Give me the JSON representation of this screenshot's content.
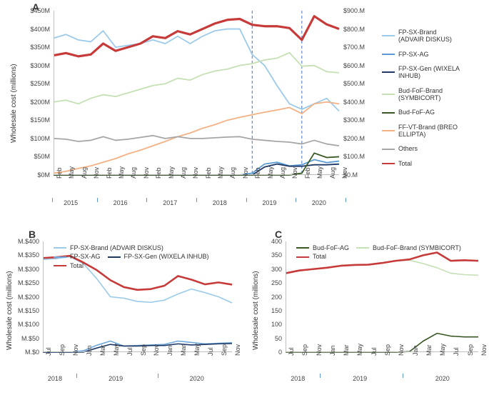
{
  "A": {
    "type": "line",
    "label": "A",
    "y_title": "Wholesale cost (millions)",
    "secondary_y_title": "",
    "x_months": [
      "Feb",
      "May",
      "Aug",
      "Nov",
      "Feb",
      "May",
      "Aug",
      "Nov",
      "Feb",
      "May",
      "Aug",
      "Nov",
      "Feb",
      "May",
      "Aug",
      "Nov",
      "Feb",
      "May",
      "Aug",
      "Nov",
      "Feb",
      "May",
      "Aug",
      "Nov"
    ],
    "x_years": [
      2015,
      2016,
      2017,
      2018,
      2019,
      2020
    ],
    "y_ticks": [
      "$0M",
      "$50M",
      "$100M",
      "$150M",
      "$200M",
      "$250M",
      "$300M",
      "$350M",
      "$400M",
      "$450M"
    ],
    "y_lim": [
      0,
      450
    ],
    "y2_ticks": [
      "$0.M",
      "$100.M",
      "$200.M",
      "$300.M",
      "$400.M",
      "$500.M",
      "$600.M",
      "$700.M",
      "$800.M",
      "$900.M"
    ],
    "y2_lim": [
      0,
      900
    ],
    "vlines_x": [
      16,
      20
    ],
    "vline_color": "#4472c4",
    "vline_dash": "4,3",
    "series_order": [
      "FP-SX-Brand",
      "FP-SX-AG",
      "FP-SX-Gen",
      "Bud-FoF-Brand",
      "Bud-FoF-AG",
      "FF-VT-Brand",
      "Others",
      "Total"
    ],
    "series": {
      "FP-SX-Brand": {
        "color": "#9ccbe9",
        "width": 1.8,
        "label": "FP-SX-Brand (ADVAIR DISKUS)",
        "values": [
          375,
          385,
          370,
          365,
          395,
          350,
          355,
          360,
          370,
          360,
          380,
          360,
          380,
          395,
          400,
          400,
          330,
          300,
          245,
          195,
          180,
          195,
          210,
          175
        ]
      },
      "FP-SX-AG": {
        "color": "#5b9bd5",
        "width": 1.8,
        "label": "FP-SX-AG",
        "values": [
          0,
          0,
          0,
          0,
          0,
          0,
          0,
          0,
          0,
          0,
          0,
          0,
          0,
          0,
          0,
          0,
          5,
          30,
          35,
          25,
          28,
          42,
          34,
          38
        ]
      },
      "FP-SX-Gen": {
        "color": "#1f3864",
        "width": 1.8,
        "label": "FP-SX-Gen (WIXELA INHUB)",
        "values": [
          0,
          0,
          0,
          0,
          0,
          0,
          0,
          0,
          0,
          0,
          0,
          0,
          0,
          0,
          0,
          0,
          0,
          22,
          30,
          24,
          24,
          28,
          28,
          30
        ]
      },
      "Bud-FoF-Brand": {
        "color": "#c5e0b4",
        "width": 1.8,
        "label": "Bud-FoF-Brand (SYMBICORT)",
        "values": [
          200,
          205,
          195,
          210,
          220,
          215,
          225,
          235,
          245,
          250,
          265,
          260,
          275,
          285,
          290,
          300,
          305,
          315,
          320,
          335,
          298,
          300,
          283,
          280
        ]
      },
      "Bud-FoF-AG": {
        "color": "#385723",
        "width": 1.8,
        "label": "Bud-FoF-AG",
        "values": [
          0,
          0,
          0,
          0,
          0,
          0,
          0,
          0,
          0,
          0,
          0,
          0,
          0,
          0,
          0,
          0,
          0,
          0,
          0,
          0,
          5,
          60,
          48,
          50
        ]
      },
      "FF-VT-Brand": {
        "color": "#f4b183",
        "width": 1.8,
        "label": "FF-VT-Brand (BREO ELLIPTA)",
        "values": [
          5,
          10,
          18,
          25,
          35,
          45,
          58,
          68,
          80,
          92,
          105,
          115,
          128,
          138,
          150,
          158,
          165,
          172,
          178,
          185,
          168,
          195,
          200,
          195
        ]
      },
      "Others": {
        "color": "#a6a6a6",
        "width": 1.8,
        "label": "Others",
        "values": [
          100,
          98,
          92,
          95,
          105,
          95,
          98,
          103,
          108,
          100,
          105,
          100,
          100,
          102,
          104,
          105,
          98,
          95,
          92,
          90,
          85,
          95,
          85,
          80
        ]
      },
      "Total": {
        "color": "#c73a3a",
        "width": 3.2,
        "label": "Total",
        "axis": "y2",
        "values": [
          655,
          668,
          650,
          660,
          720,
          680,
          700,
          720,
          760,
          750,
          788,
          770,
          800,
          830,
          850,
          855,
          823,
          815,
          815,
          805,
          740,
          870,
          825,
          800
        ]
      }
    },
    "plot_bg": "#ffffff",
    "axis_color": "#bfbfbf",
    "tick_font_size": 9
  },
  "B": {
    "type": "line",
    "label": "B",
    "y_title": "Wholesale cost (millions)",
    "x_months": [
      "Jul",
      "Sep",
      "Nov",
      "Jan",
      "Mar",
      "May",
      "Jul",
      "Sep",
      "Nov",
      "Jan",
      "Mar",
      "May",
      "Jul",
      "Sep",
      "Nov"
    ],
    "x_years": [
      2018,
      2019,
      2020
    ],
    "year_breaks": [
      3,
      9
    ],
    "y_ticks": [
      "$0.M",
      "$50.M",
      "$100.M",
      "$150.M",
      "$200.M",
      "$250.M",
      "$300.M",
      "$350.M",
      "$400.M"
    ],
    "y_lim": [
      0,
      400
    ],
    "series_order": [
      "FP-SX-Brand",
      "FP-SX-AG",
      "FP-SX-Gen",
      "Total"
    ],
    "series": {
      "FP-SX-Brand": {
        "color": "#9ccbe9",
        "width": 1.6,
        "label": "FP-SX-Brand (ADVAIR DISKUS)",
        "values": [
          335,
          338,
          345,
          320,
          265,
          200,
          195,
          183,
          180,
          188,
          210,
          228,
          215,
          200,
          178
        ]
      },
      "FP-SX-AG": {
        "color": "#6fa8dc",
        "width": 1.6,
        "label": "FP-SX-AG",
        "values": [
          0,
          0,
          0,
          5,
          25,
          40,
          22,
          24,
          26,
          28,
          40,
          35,
          30,
          32,
          34
        ]
      },
      "FP-SX-Gen": {
        "color": "#1f3864",
        "width": 1.6,
        "label": "FP-SX-Gen (WIXELA INHUB)",
        "values": [
          0,
          0,
          0,
          0,
          15,
          28,
          22,
          22,
          24,
          24,
          30,
          26,
          28,
          30,
          31
        ]
      },
      "Total": {
        "color": "#c73a3a",
        "width": 2.6,
        "label": "Total",
        "values": [
          340,
          343,
          348,
          324,
          296,
          260,
          235,
          225,
          228,
          240,
          275,
          262,
          245,
          252,
          244
        ]
      }
    },
    "plot_bg": "#ffffff",
    "axis_color": "#bfbfbf"
  },
  "C": {
    "type": "line",
    "label": "C",
    "y_title": "Wholesale cost (millions)",
    "x_months": [
      "Jul",
      "Sep",
      "Nov",
      "Jan",
      "Mar",
      "May",
      "Jul",
      "Sep",
      "Nov",
      "Jan",
      "Mar",
      "May",
      "Jul",
      "Sep",
      "Nov"
    ],
    "x_years": [
      2018,
      2019,
      2020
    ],
    "year_breaks": [
      3,
      9
    ],
    "y_ticks": [
      "0",
      "50",
      "100",
      "150",
      "200",
      "250",
      "300",
      "350",
      "400"
    ],
    "y_lim": [
      0,
      400
    ],
    "series_order": [
      "Bud-FoF-AG",
      "Bud-FoF-Brand",
      "Total"
    ],
    "series": {
      "Bud-FoF-AG": {
        "color": "#385723",
        "width": 1.6,
        "label": "Bud-FoF-AG",
        "values": [
          0,
          0,
          0,
          0,
          0,
          0,
          0,
          0,
          0,
          2,
          40,
          68,
          58,
          55,
          55
        ]
      },
      "Bud-FoF-Brand": {
        "color": "#c5e0b4",
        "width": 1.6,
        "label": "Bud-FoF-Brand (SYMBICORT)",
        "values": [
          285,
          295,
          300,
          305,
          312,
          315,
          316,
          322,
          330,
          332,
          320,
          305,
          285,
          280,
          278
        ]
      },
      "Total": {
        "color": "#c73a3a",
        "width": 2.6,
        "label": "Total",
        "values": [
          285,
          295,
          300,
          305,
          312,
          315,
          316,
          322,
          330,
          335,
          350,
          360,
          330,
          332,
          330
        ]
      }
    },
    "plot_bg": "#ffffff",
    "axis_color": "#bfbfbf"
  },
  "colors": {
    "background": "#ffffff",
    "text": "#333333"
  }
}
